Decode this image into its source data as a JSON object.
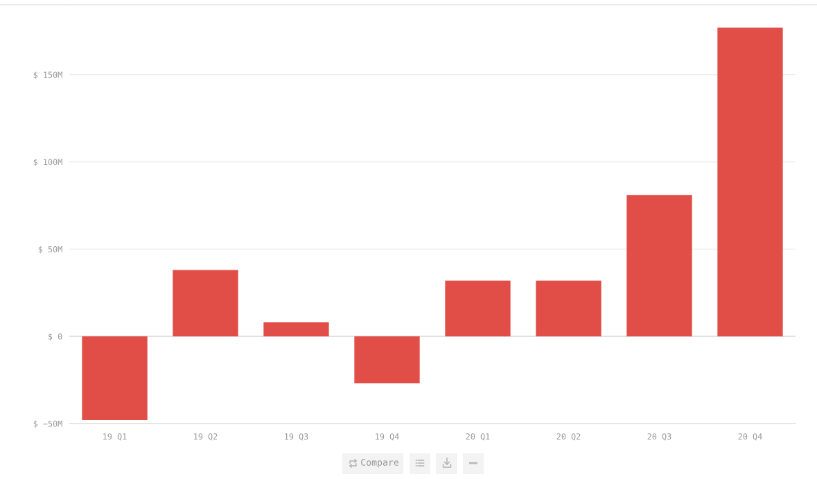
{
  "chart_data": {
    "type": "bar",
    "categories": [
      "19 Q1",
      "19 Q2",
      "19 Q3",
      "19 Q4",
      "20 Q1",
      "20 Q2",
      "20 Q3",
      "20 Q4"
    ],
    "values": [
      -48,
      38,
      8,
      -27,
      32,
      32,
      81,
      177
    ],
    "color": "#e14e48",
    "ylim": [
      -50,
      190
    ],
    "yticks": [
      {
        "value": -50,
        "label": "$ −50M"
      },
      {
        "value": 0,
        "label": "$ 0"
      },
      {
        "value": 50,
        "label": "$ 50M"
      },
      {
        "value": 100,
        "label": "$ 100M"
      },
      {
        "value": 150,
        "label": "$ 150M"
      }
    ],
    "grid": "y",
    "annotations": [
      "Compare"
    ]
  }
}
